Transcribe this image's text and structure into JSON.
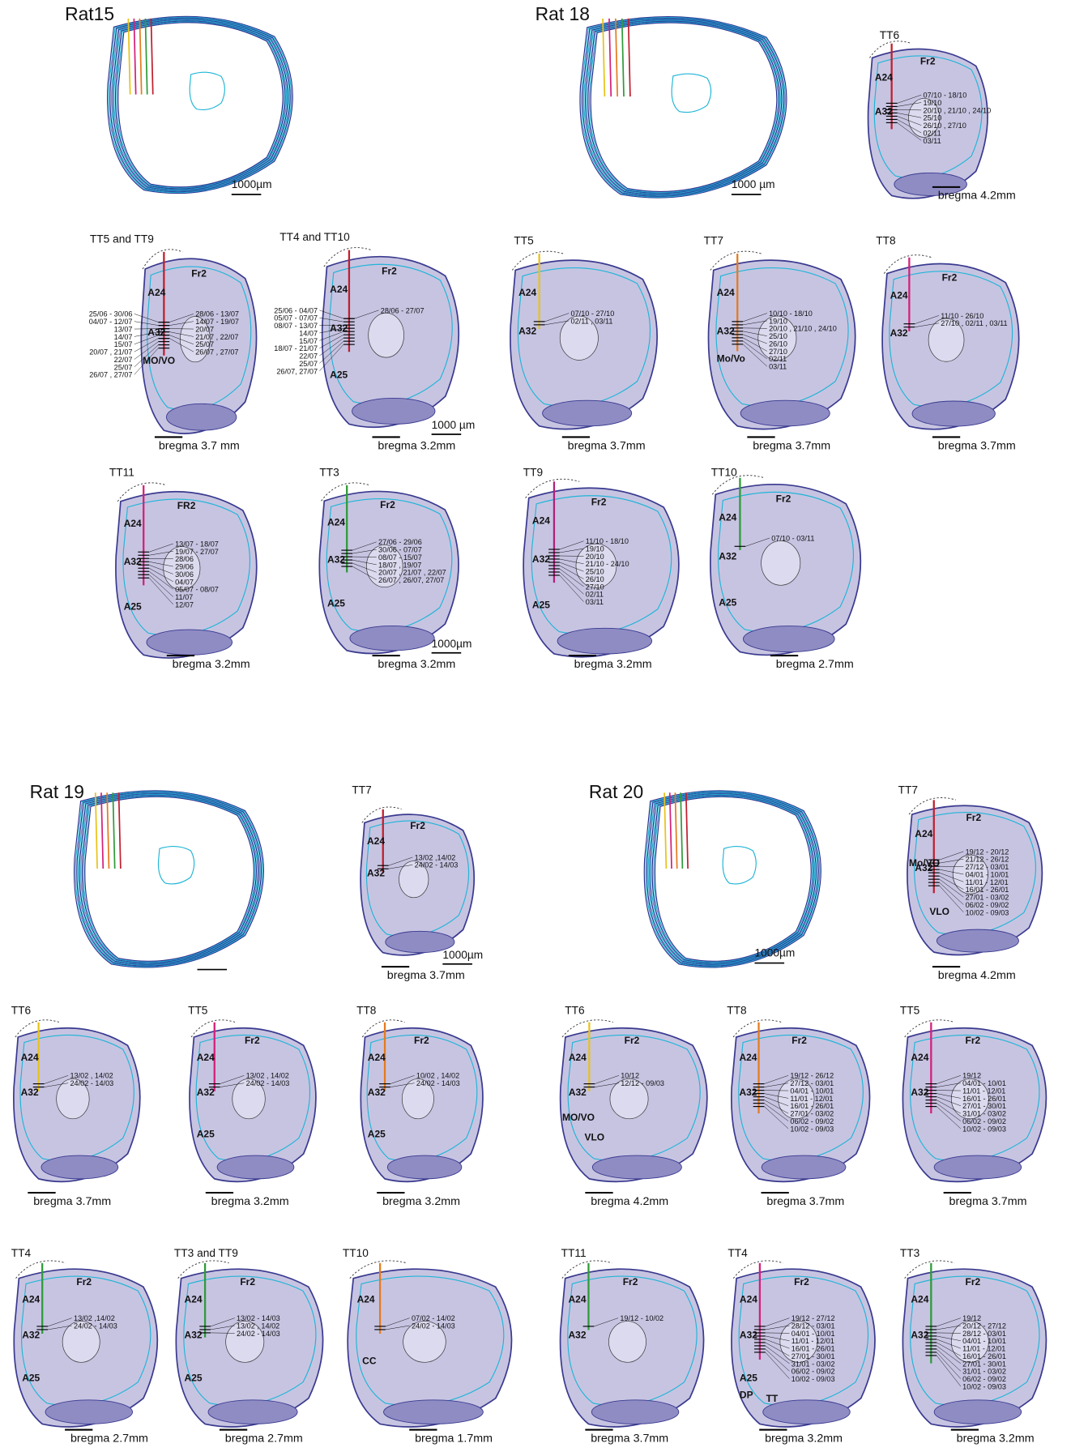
{
  "overviews": [
    {
      "title": "Rat15",
      "scale_label": "1000µm"
    },
    {
      "title": "Rat 18",
      "scale_label": "1000 µm"
    },
    {
      "title": "Rat 19"
    },
    {
      "title": "Rat 20",
      "scale_label": "1000µm"
    }
  ],
  "sections": [
    {
      "title": "TT6",
      "regions": [
        "Fr2",
        "A24",
        "A32"
      ],
      "dates": [
        "07/10 - 18/10",
        "19/10",
        "20/10 , 21/10 , 24/10",
        "25/10",
        "26/10 , 27/10",
        "02/11",
        "03/11"
      ],
      "bregma": "bregma 4.2mm"
    },
    {
      "title": "TT5 and TT9",
      "regions": [
        "A24",
        "Fr2",
        "A32",
        "MO/VO"
      ],
      "dates_left": [
        "25/06 - 30/06",
        "04/07 - 12/07",
        "13/07",
        "14/07",
        "15/07",
        "20/07 , 21/07",
        "22/07",
        "25/07",
        "26/07 , 27/07"
      ],
      "dates": [
        "28/06 - 13/07",
        "14/07 - 19/07",
        "20/07",
        "21/07 , 22/07",
        "25/07",
        "26/07 , 27/07"
      ],
      "bregma": "bregma 3.7 mm"
    },
    {
      "title": "TT4 and TT10",
      "regions": [
        "A24",
        "Fr2",
        "A32",
        "A25"
      ],
      "dates_left": [
        "25/06 - 04/07",
        "05/07 - 07/07",
        "08/07 - 13/07",
        "14/07",
        "15/07",
        "18/07 - 21/07",
        "22/07",
        "25/07",
        "26/07, 27/07"
      ],
      "dates": [
        "28/06 - 27/07"
      ],
      "scale_label": "1000 µm",
      "bregma": "bregma 3.2mm"
    },
    {
      "title": "TT5",
      "regions": [
        "A24",
        "A32"
      ],
      "dates": [
        "07/10 - 27/10",
        "02/11 , 03/11"
      ],
      "bregma": "bregma 3.7mm"
    },
    {
      "title": "TT7",
      "regions": [
        "A24",
        "A32",
        "Mo/Vo"
      ],
      "dates": [
        "10/10 - 18/10",
        "19/10",
        "20/10 , 21/10 , 24/10",
        "25/10",
        "26/10",
        "27/10",
        "02/11",
        "03/11"
      ],
      "bregma": "bregma 3.7mm"
    },
    {
      "title": "TT8",
      "regions": [
        "A24",
        "Fr2",
        "A32"
      ],
      "dates": [
        "11/10 - 26/10",
        "27/10 , 02/11 , 03/11"
      ],
      "bregma": "bregma 3.7mm"
    },
    {
      "title": "TT11",
      "regions": [
        "FR2",
        "A24",
        "A32",
        "A25"
      ],
      "dates": [
        "13/07 - 18/07",
        "19/07 - 27/07",
        "28/06",
        "29/06",
        "30/06",
        "04/07",
        "05/07 - 08/07",
        "11/07",
        "12/07"
      ],
      "bregma": "bregma 3.2mm"
    },
    {
      "title": "TT3",
      "regions": [
        "Fr2",
        "A24",
        "A32",
        "A25"
      ],
      "dates": [
        "27/06 - 29/06",
        "30/06 - 07/07",
        "08/07 - 15/07",
        "18/07 , 19/07",
        "20/07 , 21/07 , 22/07",
        "26/07 , 26/07, 27/07"
      ],
      "scale_label": "1000µm",
      "bregma": "bregma 3.2mm"
    },
    {
      "title": "TT9",
      "regions": [
        "A24",
        "Fr2",
        "A32",
        "A25"
      ],
      "dates": [
        "11/10 - 18/10",
        "19/10",
        "20/10",
        "21/10 - 24/10",
        "25/10",
        "26/10",
        "27/10",
        "02/11",
        "03/11"
      ],
      "bregma": "bregma 3.2mm"
    },
    {
      "title": "TT10",
      "regions": [
        "A24",
        "Fr2",
        "A32",
        "A25"
      ],
      "dates": [
        "07/10 - 03/11"
      ],
      "bregma": "bregma 2.7mm"
    },
    {
      "title": "TT7",
      "regions": [
        "A24",
        "Fr2",
        "A32"
      ],
      "dates": [
        "13/02 ,14/02",
        "24/02 - 14/03"
      ],
      "scale_label": "1000µm",
      "bregma": "bregma 3.7mm"
    },
    {
      "title": "TT7",
      "regions": [
        "Fr2",
        "A24",
        "A32",
        "Mo/VO",
        "VLO"
      ],
      "dates": [
        "19/12 - 20/12",
        "21/12 - 26/12",
        "27/12 - 03/01",
        "04/01 - 10/01",
        "11/01 - 12/01",
        "16/01 - 26/01",
        "27/01 - 03/02",
        "06/02 - 09/02",
        "10/02 - 09/03"
      ],
      "bregma": "bregma 4.2mm"
    },
    {
      "title": "TT6",
      "regions": [
        "A24",
        "A32"
      ],
      "dates": [
        "13/02 , 14/02",
        "24/02 - 14/03"
      ],
      "bregma": "bregma 3.7mm"
    },
    {
      "title": "TT5",
      "regions": [
        "A24",
        "Fr2",
        "A32",
        "A25"
      ],
      "dates": [
        "13/02 , 14/02",
        "24/02 - 14/03"
      ],
      "bregma": "bregma 3.2mm"
    },
    {
      "title": "TT8",
      "regions": [
        "A24",
        "Fr2",
        "A32",
        "A25"
      ],
      "dates": [
        "10/02 , 14/02",
        "24/02 - 14/03"
      ],
      "bregma": "bregma 3.2mm"
    },
    {
      "title": "TT6",
      "regions": [
        "A24",
        "Fr2",
        "A32",
        "MO/VO",
        "VLO"
      ],
      "dates": [
        "10/12",
        "12/12 - 09/03"
      ],
      "bregma": "bregma 4.2mm"
    },
    {
      "title": "TT8",
      "regions": [
        "A24",
        "Fr2",
        "A32"
      ],
      "dates": [
        "19/12 - 26/12",
        "27/12 - 03/01",
        "04/01 - 10/01",
        "11/01 - 12/01",
        "16/01 - 26/01",
        "27/01 - 03/02",
        "06/02 - 09/02",
        "10/02 - 09/03"
      ],
      "bregma": "bregma 3.7mm"
    },
    {
      "title": "TT5",
      "regions": [
        "A24",
        "Fr2",
        "A32"
      ],
      "dates": [
        "19/12",
        "04/01 - 10/01",
        "11/01 - 12/01",
        "16/01 - 26/01",
        "27/01 - 30/01",
        "31/01 - 03/02",
        "06/02 - 09/02",
        "10/02 - 09/03"
      ],
      "bregma": "bregma 3.7mm"
    },
    {
      "title": "TT4",
      "regions": [
        "Fr2",
        "A24",
        "A32",
        "A25"
      ],
      "dates": [
        "13/02 ,14/02",
        "24/02 - 14/03"
      ],
      "bregma": "bregma 2.7mm"
    },
    {
      "title": "TT3 and TT9",
      "regions": [
        "A24",
        "Fr2",
        "A32",
        "A25"
      ],
      "dates": [
        "13/02 - 14/03",
        "13/02 , 14/02",
        "24/02 - 14/03"
      ],
      "bregma": "bregma 2.7mm"
    },
    {
      "title": "TT10",
      "regions": [
        "A24",
        "CC"
      ],
      "dates": [
        "07/02 - 14/02",
        "24/02 - 14/03"
      ],
      "bregma": "bregma 1.7mm"
    },
    {
      "title": "TT11",
      "regions": [
        "A24",
        "Fr2",
        "A32"
      ],
      "dates": [
        "19/12 - 10/02"
      ],
      "bregma": "bregma 3.7mm"
    },
    {
      "title": "TT4",
      "regions": [
        "Fr2",
        "A24",
        "A32",
        "A25",
        "DP",
        "TT"
      ],
      "dates": [
        "19/12 - 27/12",
        "28/12 - 03/01",
        "04/01 - 10/01",
        "11/01 - 12/01",
        "16/01 - 26/01",
        "27/01 - 30/01",
        "31/01 - 03/02",
        "06/02 - 09/02",
        "10/02 - 09/03"
      ],
      "bregma": "bregma 3.2mm"
    },
    {
      "title": "TT3",
      "regions": [
        "Fr2",
        "A24",
        "A32"
      ],
      "dates": [
        "19/12",
        "20/12 - 27/12",
        "28/12 - 03/01",
        "04/01 - 10/01",
        "11/01 - 12/01",
        "16/01 - 26/01",
        "27/01 - 30/01",
        "31/01 - 03/02",
        "06/02 - 09/02",
        "10/02 - 09/03"
      ],
      "bregma": "bregma 3.2mm"
    }
  ]
}
